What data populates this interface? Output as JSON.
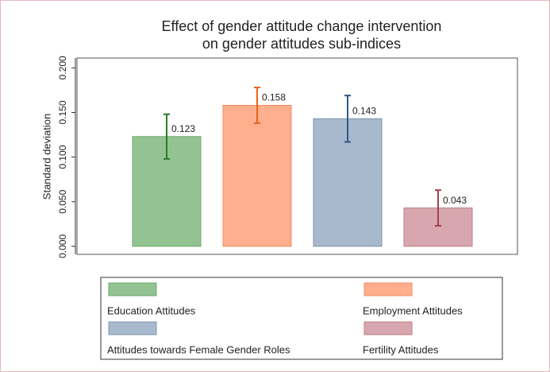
{
  "chart_data": {
    "type": "bar",
    "title": [
      "Effect of gender attitude change intervention",
      "on gender attitudes sub-indices"
    ],
    "y_label": "Standard deviation",
    "categories": [
      "Education Attitudes",
      "Employment Attitudes",
      "Attitudes towards Female Gender Roles",
      "Fertility Attitudes"
    ],
    "values": [
      0.123,
      0.158,
      0.143,
      0.043
    ],
    "errors": [
      0.025,
      0.02,
      0.026,
      0.02
    ],
    "colors": [
      "#93c393",
      "#ffae8e",
      "#a8b8cd",
      "#d8a6ae"
    ],
    "edge_colors": [
      "#6aa86a",
      "#f08c66",
      "#7f95b3",
      "#be7f89"
    ],
    "error_colors": [
      "#2b7a2b",
      "#e8641e",
      "#2f5886",
      "#a2404d"
    ],
    "ylim": [
      -0.009,
      0.211
    ],
    "yticks": [
      {
        "value": 0,
        "label": "0.000"
      },
      {
        "value": 0.05,
        "label": "0.050"
      },
      {
        "value": 0.1,
        "label": "0.100"
      },
      {
        "value": 0.15,
        "label": "0.150"
      },
      {
        "value": 0.2,
        "label": "0.200"
      }
    ],
    "legend": "bottom"
  }
}
